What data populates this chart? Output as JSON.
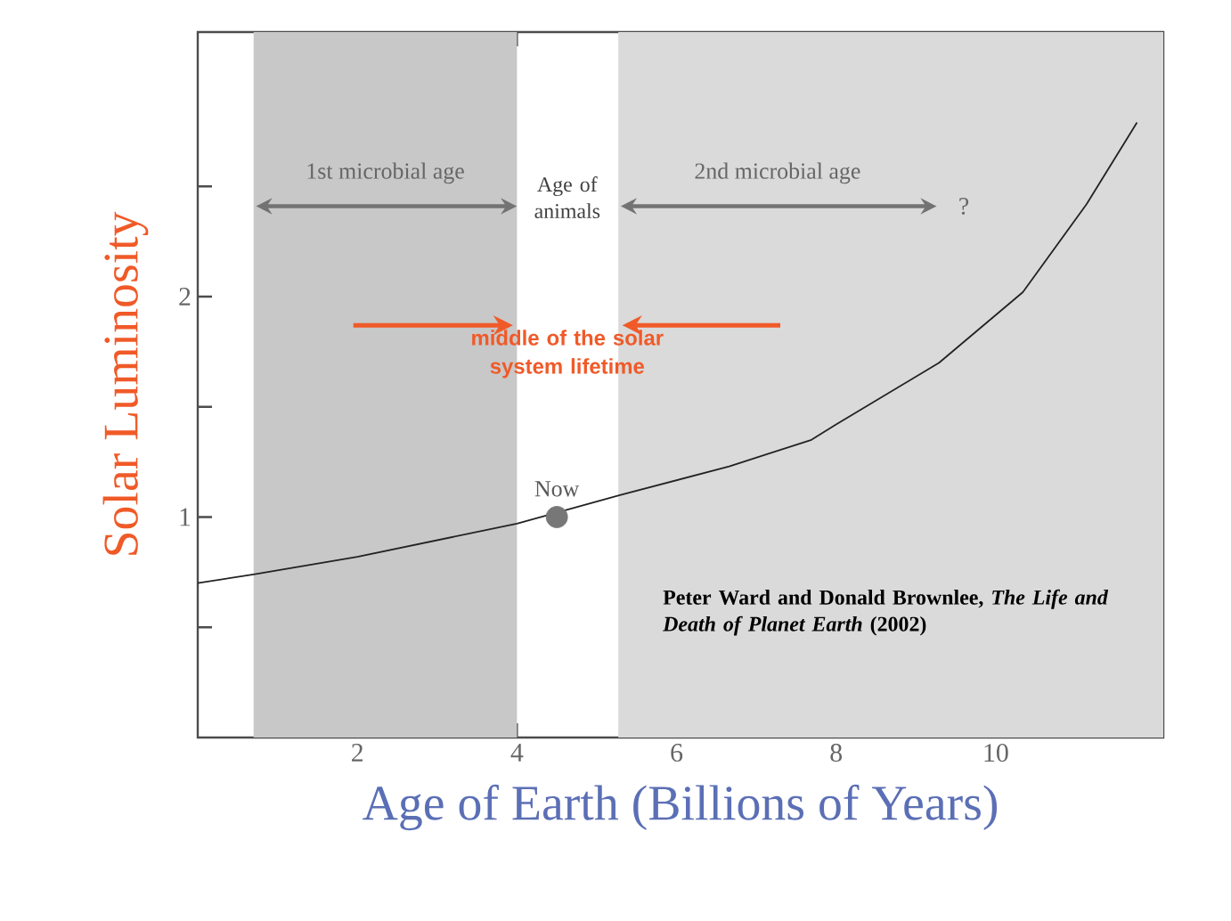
{
  "chart_data": {
    "type": "line",
    "xlabel": "Age of Earth (Billions of Years)",
    "ylabel": "Solar Luminosity",
    "xlim": [
      0,
      12.1
    ],
    "ylim": [
      0,
      3.2
    ],
    "xticks": [
      2,
      4,
      6,
      8,
      10
    ],
    "yticks": [
      {
        "value": 0.5,
        "label": null
      },
      1,
      {
        "value": 1.5,
        "label": null
      },
      2,
      {
        "value": 2.5,
        "label": null
      }
    ],
    "grid": false,
    "series": [
      {
        "type": "line",
        "color": "#222222",
        "x": [
          0,
          0.7,
          2,
          4,
          5.3,
          6.66,
          7.69,
          8.0,
          9.29,
          10.34,
          11.14,
          11.77
        ],
        "values": [
          0.7,
          0.74,
          0.82,
          0.97,
          1.1,
          1.23,
          1.35,
          1.42,
          1.7,
          2.02,
          2.42,
          2.79
        ]
      },
      {
        "type": "scatter",
        "color": "#777777",
        "marker": "circle",
        "x": [
          4.5
        ],
        "values": [
          1.0
        ]
      }
    ],
    "bands": [
      {
        "axis": "x",
        "from": 0.7,
        "to": 4.0,
        "label": "1st microbial age",
        "color": "#c8c8c8"
      },
      {
        "axis": "x",
        "from": 5.27,
        "to": 12.1,
        "label": "2nd microbial age",
        "color": "#dadada"
      }
    ],
    "annotations": [
      "Age of animals",
      "?",
      "middle of the solar system lifetime",
      {
        "text": "Now",
        "x": 4.5,
        "y": 1.0
      },
      "Peter Ward and Donald Brownlee, *The Life and Death of Planet Earth* (2002)"
    ]
  }
}
